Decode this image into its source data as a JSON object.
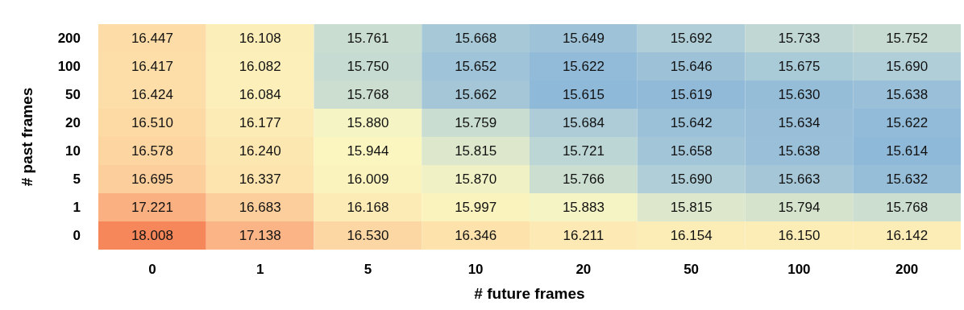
{
  "chart_data": {
    "type": "heatmap",
    "xlabel": "# future frames",
    "ylabel": "# past frames",
    "categories": [
      "0",
      "1",
      "5",
      "10",
      "20",
      "50",
      "100",
      "200"
    ],
    "y_categories": [
      "200",
      "100",
      "50",
      "20",
      "10",
      "5",
      "1",
      "0"
    ],
    "cells": [
      [
        16.447,
        16.108,
        15.761,
        15.668,
        15.649,
        15.692,
        15.733,
        15.752
      ],
      [
        16.417,
        16.082,
        15.75,
        15.652,
        15.622,
        15.646,
        15.675,
        15.69
      ],
      [
        16.424,
        16.084,
        15.768,
        15.662,
        15.615,
        15.619,
        15.63,
        15.638
      ],
      [
        16.51,
        16.177,
        15.88,
        15.759,
        15.684,
        15.642,
        15.634,
        15.622
      ],
      [
        16.578,
        16.24,
        15.944,
        15.815,
        15.721,
        15.658,
        15.638,
        15.614
      ],
      [
        16.695,
        16.337,
        16.009,
        15.87,
        15.766,
        15.69,
        15.663,
        15.632
      ],
      [
        17.221,
        16.683,
        16.168,
        15.997,
        15.883,
        15.815,
        15.794,
        15.768
      ],
      [
        18.008,
        17.138,
        16.53,
        16.346,
        16.211,
        16.154,
        16.15,
        16.142
      ]
    ],
    "cell_labels": [
      [
        "16.447",
        "16.108",
        "15.761",
        "15.668",
        "15.649",
        "15.692",
        "15.733",
        "15.752"
      ],
      [
        "16.417",
        "16.082",
        "15.750",
        "15.652",
        "15.622",
        "15.646",
        "15.675",
        "15.690"
      ],
      [
        "16.424",
        "16.084",
        "15.768",
        "15.662",
        "15.615",
        "15.619",
        "15.630",
        "15.638"
      ],
      [
        "16.510",
        "16.177",
        "15.880",
        "15.759",
        "15.684",
        "15.642",
        "15.634",
        "15.622"
      ],
      [
        "16.578",
        "16.240",
        "15.944",
        "15.815",
        "15.721",
        "15.658",
        "15.638",
        "15.614"
      ],
      [
        "16.695",
        "16.337",
        "16.009",
        "15.870",
        "15.766",
        "15.690",
        "15.663",
        "15.632"
      ],
      [
        "17.221",
        "16.683",
        "16.168",
        "15.997",
        "15.883",
        "15.815",
        "15.794",
        "15.768"
      ],
      [
        "18.008",
        "17.138",
        "16.530",
        "16.346",
        "16.211",
        "16.154",
        "16.150",
        "16.142"
      ]
    ]
  }
}
